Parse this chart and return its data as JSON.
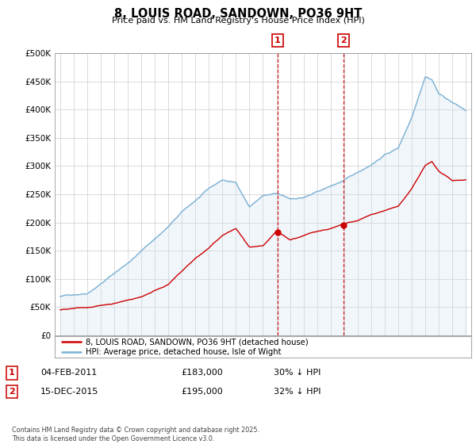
{
  "title": "8, LOUIS ROAD, SANDOWN, PO36 9HT",
  "subtitle": "Price paid vs. HM Land Registry's House Price Index (HPI)",
  "hpi_color": "#7ab0d4",
  "hpi_fill_color": "#c8dff0",
  "price_color": "#cc0000",
  "annotation1_date": "04-FEB-2011",
  "annotation1_price": "£183,000",
  "annotation1_hpi": "30% ↓ HPI",
  "annotation2_date": "15-DEC-2015",
  "annotation2_price": "£195,000",
  "annotation2_hpi": "32% ↓ HPI",
  "legend_house": "8, LOUIS ROAD, SANDOWN, PO36 9HT (detached house)",
  "legend_hpi": "HPI: Average price, detached house, Isle of Wight",
  "footer": "Contains HM Land Registry data © Crown copyright and database right 2025.\nThis data is licensed under the Open Government Licence v3.0.",
  "ylim": [
    0,
    500000
  ],
  "yticks": [
    0,
    50000,
    100000,
    150000,
    200000,
    250000,
    300000,
    350000,
    400000,
    450000,
    500000
  ],
  "ytick_labels": [
    "£0",
    "£50K",
    "£100K",
    "£150K",
    "£200K",
    "£250K",
    "£300K",
    "£350K",
    "£400K",
    "£450K",
    "£500K"
  ],
  "marker1_year": 2011.08,
  "marker1_price_val": 183000,
  "marker2_year": 2015.96,
  "marker2_price_val": 195000,
  "xstart": 1995,
  "xend": 2025
}
